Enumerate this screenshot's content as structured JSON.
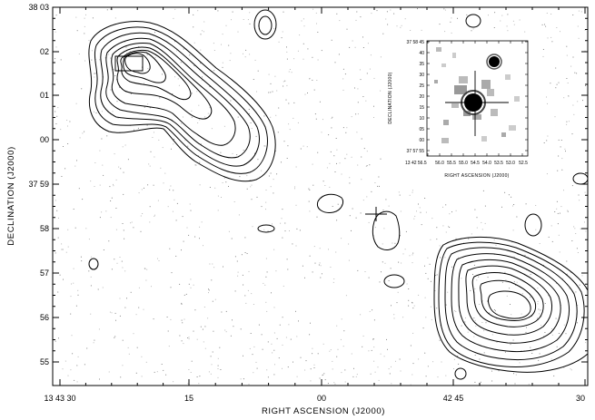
{
  "main_plot": {
    "xlabel": "RIGHT ASCENSION (J2000)",
    "ylabel": "DECLINATION (J2000)",
    "x_ticks": [
      "13 43 30",
      "15",
      "00",
      "42 45",
      "30"
    ],
    "y_ticks": [
      "38 03",
      "02",
      "01",
      "00",
      "37 59",
      "58",
      "57",
      "56",
      "55"
    ]
  },
  "inset": {
    "xlabel": "RIGHT ASCENSION (J2000)",
    "ylabel": "DECLINATION (J2000)",
    "x_ticks": [
      "13 42 56.5",
      "56.0",
      "55.5",
      "55.0",
      "54.5",
      "54.0",
      "53.5",
      "53.0",
      "52.5"
    ],
    "y_ticks": [
      "37 58 45",
      "40",
      "35",
      "30",
      "25",
      "20",
      "15",
      "10",
      "05",
      "00",
      "37 57 55"
    ]
  }
}
